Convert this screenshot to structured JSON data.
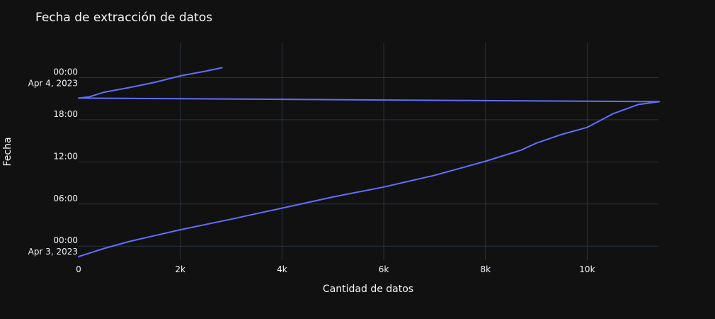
{
  "chart_data": {
    "type": "line",
    "title": "Fecha de extracción de datos",
    "xlabel": "Cantidad de datos",
    "ylabel": "Fecha",
    "xlim": [
      0,
      11400
    ],
    "ylim": [
      "2023-04-02 22:00",
      "2023-04-04 05:00"
    ],
    "x_ticks": [
      {
        "value": 0,
        "label": "0"
      },
      {
        "value": 2000,
        "label": "2k"
      },
      {
        "value": 4000,
        "label": "4k"
      },
      {
        "value": 6000,
        "label": "6k"
      },
      {
        "value": 8000,
        "label": "8k"
      },
      {
        "value": 10000,
        "label": "10k"
      }
    ],
    "y_ticks": [
      {
        "value": "2023-04-03 00:00",
        "label": "00:00",
        "sublabel": "Apr 3, 2023"
      },
      {
        "value": "2023-04-03 06:00",
        "label": "06:00",
        "sublabel": ""
      },
      {
        "value": "2023-04-03 12:00",
        "label": "12:00",
        "sublabel": ""
      },
      {
        "value": "2023-04-03 18:00",
        "label": "18:00",
        "sublabel": ""
      },
      {
        "value": "2023-04-04 00:00",
        "label": "00:00",
        "sublabel": "Apr 4, 2023"
      }
    ],
    "grid": true,
    "legend": false,
    "series": [
      {
        "color": "#636efa",
        "points": [
          {
            "x": 0,
            "y": "2023-04-02 22:30"
          },
          {
            "x": 500,
            "y": "2023-04-02 23:40"
          },
          {
            "x": 1000,
            "y": "2023-04-03 00:40"
          },
          {
            "x": 1500,
            "y": "2023-04-03 01:30"
          },
          {
            "x": 2000,
            "y": "2023-04-03 02:20"
          },
          {
            "x": 3000,
            "y": "2023-04-03 03:50"
          },
          {
            "x": 4000,
            "y": "2023-04-03 05:25"
          },
          {
            "x": 5000,
            "y": "2023-04-03 07:00"
          },
          {
            "x": 6000,
            "y": "2023-04-03 08:25"
          },
          {
            "x": 7000,
            "y": "2023-04-03 10:05"
          },
          {
            "x": 8000,
            "y": "2023-04-03 12:05"
          },
          {
            "x": 8700,
            "y": "2023-04-03 13:40"
          },
          {
            "x": 9000,
            "y": "2023-04-03 14:40"
          },
          {
            "x": 9500,
            "y": "2023-04-03 15:55"
          },
          {
            "x": 10000,
            "y": "2023-04-03 16:55"
          },
          {
            "x": 10500,
            "y": "2023-04-03 18:50"
          },
          {
            "x": 11000,
            "y": "2023-04-03 20:10"
          },
          {
            "x": 11420,
            "y": "2023-04-03 20:35"
          },
          {
            "x": 0,
            "y": "2023-04-03 21:05"
          },
          {
            "x": 200,
            "y": "2023-04-03 21:15"
          },
          {
            "x": 500,
            "y": "2023-04-03 21:55"
          },
          {
            "x": 1000,
            "y": "2023-04-03 22:35"
          },
          {
            "x": 1500,
            "y": "2023-04-03 23:20"
          },
          {
            "x": 2000,
            "y": "2023-04-04 00:15"
          },
          {
            "x": 2500,
            "y": "2023-04-04 00:55"
          },
          {
            "x": 2820,
            "y": "2023-04-04 01:25"
          }
        ]
      }
    ]
  }
}
